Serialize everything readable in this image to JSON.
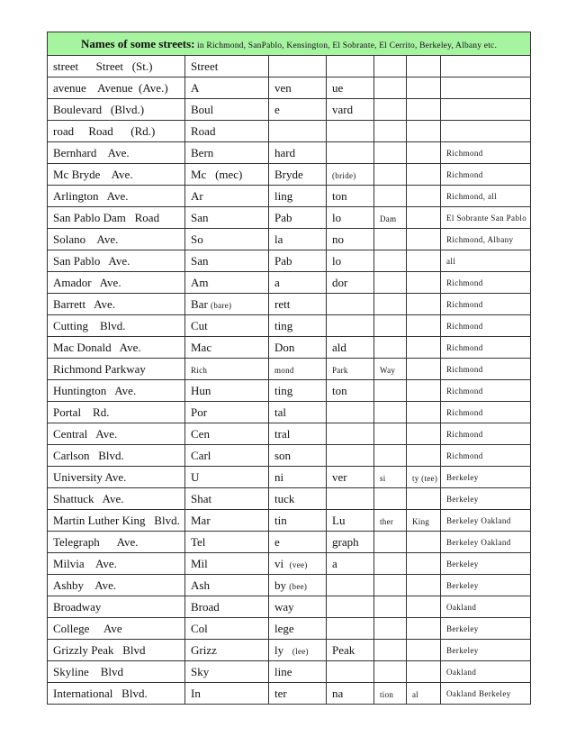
{
  "header": {
    "title": "Names of some streets:",
    "subtitle": " in Richmond, SanPablo, Kensington, El Sobrante, El Cerrito, Berkeley, Albany etc."
  },
  "colors": {
    "header_bg": "#a6f3a0",
    "border": "#333333"
  },
  "rows": [
    [
      "street      Street   (St.)",
      "Street",
      "",
      "",
      "",
      "",
      ""
    ],
    [
      "avenue    Avenue  (Ave.)",
      "A",
      "ven",
      "ue",
      "",
      "",
      ""
    ],
    [
      "Boulevard   (Blvd.)",
      "Boul",
      "e",
      "vard",
      "",
      "",
      ""
    ],
    [
      "road     Road      (Rd.)",
      "Road",
      "",
      "",
      "",
      "",
      ""
    ],
    [
      "Bernhard    Ave.",
      "Bern",
      "hard",
      "",
      "",
      "",
      "Richmond"
    ],
    [
      "Mc Bryde    Ave.",
      "Mc   (mec)",
      "Bryde",
      {
        "small": "(bride)"
      },
      "",
      "",
      "Richmond"
    ],
    [
      "Arlington   Ave.",
      "Ar",
      "ling",
      "ton",
      "",
      "",
      "Richmond, all"
    ],
    [
      "San Pablo Dam   Road",
      "San",
      "Pab",
      "lo",
      {
        "small": "Dam"
      },
      "",
      "El Sobrante San Pablo"
    ],
    [
      "Solano    Ave.",
      "So",
      "la",
      "no",
      "",
      "",
      "Richmond, Albany"
    ],
    [
      "San Pablo   Ave.",
      "San",
      "Pab",
      "lo",
      "",
      "",
      "all"
    ],
    [
      "Amador   Ave.",
      "Am",
      "a",
      "dor",
      "",
      "",
      "Richmond"
    ],
    [
      "Barrett   Ave.",
      {
        "t": "Bar ",
        "small": "(bare)"
      },
      "rett",
      "",
      "",
      "",
      "Richmond"
    ],
    [
      "Cutting    Blvd.",
      "Cut",
      "ting",
      "",
      "",
      "",
      "Richmond"
    ],
    [
      "Mac Donald   Ave.",
      "Mac",
      "Don",
      "ald",
      "",
      "",
      "Richmond"
    ],
    [
      "Richmond Parkway",
      {
        "small": "Rich"
      },
      {
        "small": "mond"
      },
      {
        "small": "Park"
      },
      {
        "small": "Way"
      },
      "",
      "Richmond"
    ],
    [
      "Huntington   Ave.",
      "Hun",
      "ting",
      "ton",
      "",
      "",
      "Richmond"
    ],
    [
      "Portal    Rd.",
      "Por",
      "tal",
      "",
      "",
      "",
      "Richmond"
    ],
    [
      "Central   Ave.",
      "Cen",
      "tral",
      "",
      "",
      "",
      "Richmond"
    ],
    [
      "Carlson   Blvd.",
      "Carl",
      "son",
      "",
      "",
      "",
      "Richmond"
    ],
    [
      "University Ave.",
      "U",
      "ni",
      "ver",
      {
        "small": "si"
      },
      {
        "small": "ty (tee)"
      },
      "Berkeley"
    ],
    [
      "Shattuck   Ave.",
      "Shat",
      "tuck",
      "",
      "",
      "",
      "Berkeley"
    ],
    [
      "Martin Luther King   Blvd.",
      "Mar",
      "tin",
      "Lu",
      {
        "small": "ther"
      },
      {
        "small": "King"
      },
      "Berkeley Oakland"
    ],
    [
      "Telegraph      Ave.",
      "Tel",
      "e",
      "graph",
      "",
      "",
      "Berkeley Oakland"
    ],
    [
      "Milvia    Ave.",
      "Mil",
      {
        "t": "vi  ",
        "small": "(vee)"
      },
      "a",
      "",
      "",
      "Berkeley"
    ],
    [
      "Ashby    Ave.",
      "Ash",
      {
        "t": "by ",
        "small": "(bee)"
      },
      "",
      "",
      "",
      "Berkeley"
    ],
    [
      "Broadway",
      "Broad",
      "way",
      "",
      "",
      "",
      "Oakland"
    ],
    [
      "College     Ave",
      "Col",
      "lege",
      "",
      "",
      "",
      "Berkeley"
    ],
    [
      "Grizzly Peak   Blvd",
      "Grizz",
      {
        "t": "ly   ",
        "small": "(lee)"
      },
      "Peak",
      "",
      "",
      "Berkeley"
    ],
    [
      "Skyline    Blvd",
      "Sky",
      "line",
      "",
      "",
      "",
      "Oakland"
    ],
    [
      "International   Blvd.",
      "In",
      "ter",
      "na",
      {
        "small": "tion"
      },
      {
        "small": "al"
      },
      "Oakland Berkeley"
    ]
  ]
}
